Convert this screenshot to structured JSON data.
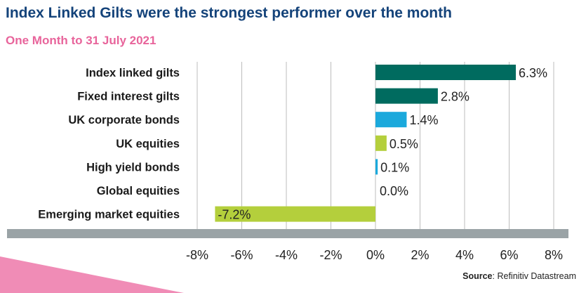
{
  "header": {
    "title": "Index Linked Gilts were the strongest performer over the month",
    "subtitle": "One Month to 31 July 2021"
  },
  "source": {
    "label": "Source",
    "text": ": Refinitiv Datastream"
  },
  "colors": {
    "title": "#14437a",
    "subtitle": "#e8649b",
    "dark_green": "#006b5f",
    "blue": "#1ba9dc",
    "lime": "#b4cf3c",
    "axis_band": "#9aa3a6",
    "grid": "#bcbcbc",
    "decoration": "#f08cb6"
  },
  "chart_data": {
    "type": "bar",
    "orientation": "horizontal",
    "categories": [
      "Index linked gilts",
      "Fixed interest gilts",
      "UK corporate bonds",
      "UK equities",
      "High yield bonds",
      "Global equities",
      "Emerging market equities"
    ],
    "values": [
      6.3,
      2.8,
      1.4,
      0.5,
      0.1,
      0.0,
      -7.2
    ],
    "data_labels": [
      "6.3%",
      "2.8%",
      "1.4%",
      "0.5%",
      "0.1%",
      "0.0%",
      "-7.2%"
    ],
    "bar_colors": [
      "#006b5f",
      "#006b5f",
      "#1ba9dc",
      "#b4cf3c",
      "#1ba9dc",
      "#b4cf3c",
      "#b4cf3c"
    ],
    "xlim": [
      -8,
      8
    ],
    "xticks": [
      -8,
      -6,
      -4,
      -2,
      0,
      2,
      4,
      6,
      8
    ],
    "xtick_labels": [
      "-8%",
      "-6%",
      "-4%",
      "-2%",
      "0%",
      "2%",
      "4%",
      "6%",
      "8%"
    ],
    "grid": true
  }
}
